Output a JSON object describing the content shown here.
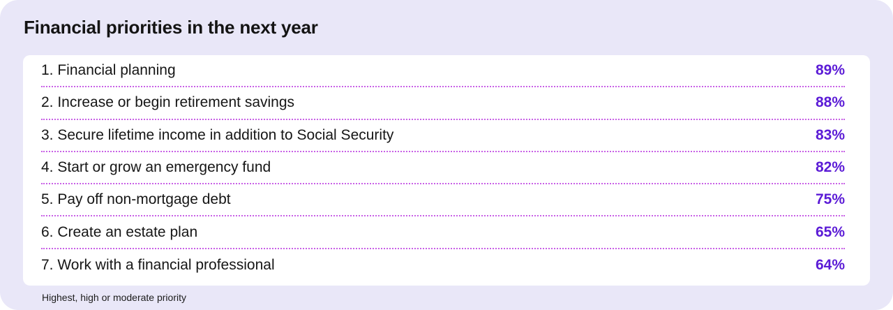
{
  "title": "Financial priorities in the next year",
  "items": [
    {
      "label": "1. Financial planning",
      "value": "89%"
    },
    {
      "label": "2. Increase or begin retirement savings",
      "value": "88%"
    },
    {
      "label": "3. Secure lifetime income in addition to Social Security",
      "value": "83%"
    },
    {
      "label": "4. Start or grow an emergency fund",
      "value": "82%"
    },
    {
      "label": "5. Pay off non-mortgage debt",
      "value": "75%"
    },
    {
      "label": "6. Create an estate plan",
      "value": "65%"
    },
    {
      "label": "7. Work with a financial professional",
      "value": "64%"
    }
  ],
  "footnote": "Highest, high or moderate priority",
  "colors": {
    "background": "#e9e7f8",
    "accent": "#5b1bd6",
    "divider": "#c85fe6"
  }
}
